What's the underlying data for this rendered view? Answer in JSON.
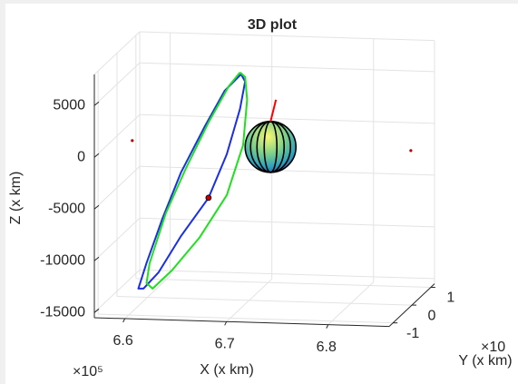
{
  "chart_data": {
    "type": "line3d",
    "title": "3D plot",
    "xlabel": "X (x km)",
    "ylabel": "Y (x km)",
    "zlabel": "Z (x km)",
    "x_exponent": "×10⁵",
    "y_exponent": "×10",
    "xlim": [
      6.57,
      6.86
    ],
    "ylim": [
      -1.2,
      1.2
    ],
    "zlim": [
      -15500,
      8000
    ],
    "xticks": [
      6.6,
      6.7,
      6.8
    ],
    "yticks": [
      -1,
      0,
      1
    ],
    "zticks": [
      -15000,
      -10000,
      -5000,
      0,
      5000
    ],
    "grid": true,
    "series": [
      {
        "color": "#1a2ee6",
        "x": [
          6.692,
          6.676,
          6.656,
          6.633,
          6.615,
          6.599,
          6.591,
          6.596,
          6.611,
          6.633,
          6.66,
          6.678,
          6.691,
          6.696,
          6.692
        ],
        "y": [
          0,
          0,
          0,
          0,
          0,
          0,
          0,
          0,
          0,
          0,
          0,
          0,
          0,
          0,
          0
        ],
        "z": [
          6307,
          4684,
          1114,
          -3333,
          -7772,
          -12202,
          -14684,
          -14671,
          -13048,
          -9474,
          -5713,
          -1451,
          2974,
          5618,
          6307
        ]
      },
      {
        "color": "#1fe01f",
        "x": [
          6.691,
          6.68,
          6.66,
          6.638,
          6.618,
          6.602,
          6.599,
          6.605,
          6.624,
          6.651,
          6.678,
          6.694,
          6.698,
          6.696,
          6.691
        ],
        "y": [
          0,
          0,
          0,
          0,
          0,
          0,
          0,
          0,
          0,
          0,
          0,
          0,
          0,
          0,
          0
        ],
        "z": [
          6482,
          5132,
          1568,
          -2883,
          -7326,
          -12196,
          -14134,
          -14646,
          -12834,
          -9598,
          -5398,
          -527,
          3869,
          6057,
          6482
        ]
      }
    ],
    "markers": {
      "color": "#c00000",
      "x": [
        6.66,
        6.585,
        6.859
      ],
      "y": [
        0,
        0,
        0
      ],
      "z": [
        -5713,
        -404,
        -576
      ]
    },
    "sphere": {
      "x": 6.721,
      "y": 0,
      "z": -623
    }
  }
}
